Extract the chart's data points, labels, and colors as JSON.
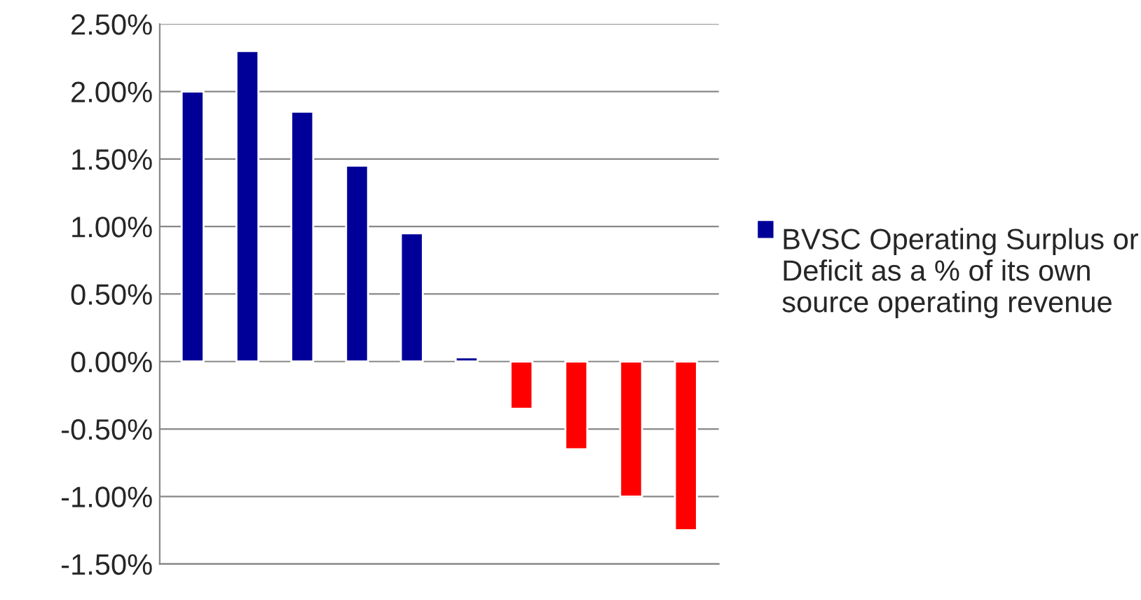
{
  "chart_data": {
    "type": "bar",
    "categories": [
      null,
      null,
      null,
      null,
      null,
      null,
      null,
      null,
      null,
      null
    ],
    "series": [
      {
        "name": "BVSC Operating Surplus or Deficit as a % of its own source operating revenue",
        "color": "#000099",
        "colors": [
          "#000099",
          "#000099",
          "#000099",
          "#000099",
          "#000099",
          "#000099",
          "#ff0000",
          "#ff0000",
          "#ff0000",
          "#ff0000"
        ],
        "values": [
          2.0,
          2.3,
          1.85,
          1.45,
          0.95,
          0.03,
          -0.35,
          -0.65,
          -1.0,
          -1.25
        ]
      }
    ],
    "ylim": [
      -1.5,
      2.5
    ],
    "yticks": [
      {
        "value": -1.5,
        "label": "-1.50%"
      },
      {
        "value": -1.0,
        "label": "-1.00%"
      },
      {
        "value": -0.5,
        "label": "-0.50%"
      },
      {
        "value": 0,
        "label": "0.00%"
      },
      {
        "value": 0.5,
        "label": "0.50%"
      },
      {
        "value": 1.0,
        "label": "1.00%"
      },
      {
        "value": 1.5,
        "label": "1.50%"
      },
      {
        "value": 2.0,
        "label": "2.00%"
      },
      {
        "value": 2.5,
        "label": "2.50%"
      }
    ],
    "grid": "y",
    "legend": "right"
  }
}
